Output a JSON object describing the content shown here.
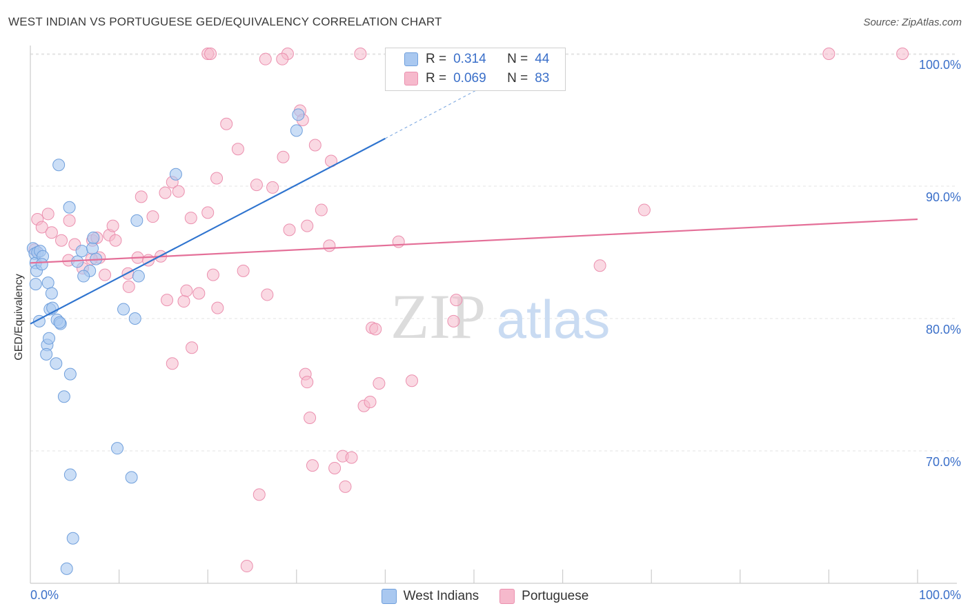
{
  "header": {
    "title": "WEST INDIAN VS PORTUGUESE GED/EQUIVALENCY CORRELATION CHART",
    "source": "Source: ZipAtlas.com"
  },
  "watermark": {
    "zip": "ZIP",
    "atlas": "atlas"
  },
  "colors": {
    "blue_fill": "#a9c8f0",
    "blue_stroke": "#6f9fdc",
    "blue_line": "#2f74cf",
    "pink_fill": "#f6b9cc",
    "pink_stroke": "#eb8fae",
    "pink_line": "#e46f98",
    "axis_text": "#3a6fc9",
    "grid": "#e3e3e3"
  },
  "legend_top": {
    "rows": [
      {
        "r_label": "R =",
        "r_value": "0.314",
        "n_label": "N =",
        "n_value": "44"
      },
      {
        "r_label": "R =",
        "r_value": "0.069",
        "n_label": "N =",
        "n_value": "83"
      }
    ]
  },
  "legend_bottom": [
    {
      "label": "West Indians"
    },
    {
      "label": "Portuguese"
    }
  ],
  "chart_data": {
    "type": "scatter",
    "title": "WEST INDIAN VS PORTUGUESE GED/EQUIVALENCY CORRELATION CHART",
    "xlabel": "",
    "ylabel": "GED/Equivalency",
    "xlim": [
      0,
      105
    ],
    "ylim": [
      60,
      101.5
    ],
    "x_tick_labels": [
      "0.0%",
      "100.0%"
    ],
    "y_ticks": [
      70,
      80,
      90,
      100
    ],
    "y_tick_labels": [
      "70.0%",
      "80.0%",
      "90.0%",
      "100.0%"
    ],
    "grid": true,
    "series": [
      {
        "name": "West Indians",
        "R": 0.314,
        "N": 44,
        "trend": {
          "x0": 0,
          "y0": 79.6,
          "x1": 40,
          "y1": 93.6,
          "dash_to_x": 58,
          "dash_to_y": 100
        },
        "points": [
          [
            0.3,
            85.3
          ],
          [
            0.5,
            84.9
          ],
          [
            0.6,
            84.2
          ],
          [
            0.8,
            85.0
          ],
          [
            0.7,
            83.6
          ],
          [
            0.6,
            82.6
          ],
          [
            1.1,
            85.1
          ],
          [
            1.4,
            84.7
          ],
          [
            1.3,
            84.1
          ],
          [
            2.0,
            82.7
          ],
          [
            2.4,
            81.9
          ],
          [
            1.0,
            79.8
          ],
          [
            2.2,
            80.7
          ],
          [
            2.5,
            80.8
          ],
          [
            3.0,
            79.9
          ],
          [
            3.4,
            79.6
          ],
          [
            1.9,
            78.0
          ],
          [
            2.1,
            78.5
          ],
          [
            1.8,
            77.3
          ],
          [
            2.9,
            76.6
          ],
          [
            4.5,
            75.8
          ],
          [
            3.8,
            74.1
          ],
          [
            3.2,
            91.6
          ],
          [
            4.4,
            88.4
          ],
          [
            5.3,
            84.3
          ],
          [
            5.8,
            85.1
          ],
          [
            7.0,
            85.3
          ],
          [
            6.7,
            83.6
          ],
          [
            7.4,
            84.5
          ],
          [
            6.0,
            83.2
          ],
          [
            7.1,
            86.1
          ],
          [
            10.5,
            80.7
          ],
          [
            12.0,
            87.4
          ],
          [
            11.8,
            80.0
          ],
          [
            12.2,
            83.2
          ],
          [
            16.4,
            90.9
          ],
          [
            9.8,
            70.2
          ],
          [
            11.4,
            68.0
          ],
          [
            4.5,
            68.2
          ],
          [
            4.8,
            63.4
          ],
          [
            4.1,
            61.1
          ],
          [
            30.0,
            94.2
          ],
          [
            30.2,
            95.4
          ],
          [
            3.3,
            79.7
          ]
        ]
      },
      {
        "name": "Portuguese",
        "R": 0.069,
        "N": 83,
        "trend": {
          "x0": 0,
          "y0": 84.2,
          "x1": 100,
          "y1": 87.5
        },
        "points": [
          [
            0.5,
            85.2
          ],
          [
            0.8,
            87.5
          ],
          [
            1.3,
            86.9
          ],
          [
            2.0,
            87.9
          ],
          [
            2.4,
            86.5
          ],
          [
            3.5,
            85.9
          ],
          [
            4.4,
            87.4
          ],
          [
            4.3,
            84.4
          ],
          [
            5.0,
            85.6
          ],
          [
            5.9,
            83.8
          ],
          [
            7.0,
            85.9
          ],
          [
            7.8,
            84.6
          ],
          [
            6.9,
            84.5
          ],
          [
            7.5,
            86.1
          ],
          [
            8.4,
            83.3
          ],
          [
            8.9,
            86.3
          ],
          [
            9.3,
            87.0
          ],
          [
            9.6,
            85.9
          ],
          [
            11.1,
            82.4
          ],
          [
            11.0,
            83.4
          ],
          [
            12.1,
            84.6
          ],
          [
            12.5,
            89.2
          ],
          [
            13.3,
            84.4
          ],
          [
            13.8,
            87.7
          ],
          [
            14.7,
            84.7
          ],
          [
            15.2,
            89.5
          ],
          [
            15.4,
            81.4
          ],
          [
            16.0,
            90.3
          ],
          [
            16.7,
            89.6
          ],
          [
            17.3,
            81.3
          ],
          [
            17.6,
            82.1
          ],
          [
            16.0,
            76.6
          ],
          [
            18.1,
            87.6
          ],
          [
            18.2,
            77.8
          ],
          [
            19.0,
            81.9
          ],
          [
            20.0,
            88.0
          ],
          [
            20.6,
            83.3
          ],
          [
            21.1,
            80.8
          ],
          [
            21.0,
            90.6
          ],
          [
            22.1,
            94.7
          ],
          [
            23.4,
            92.8
          ],
          [
            24.0,
            83.6
          ],
          [
            25.5,
            90.1
          ],
          [
            26.7,
            81.8
          ],
          [
            27.3,
            89.9
          ],
          [
            28.5,
            92.2
          ],
          [
            29.2,
            86.7
          ],
          [
            30.4,
            95.7
          ],
          [
            30.7,
            95.0
          ],
          [
            31.2,
            87.0
          ],
          [
            32.1,
            93.1
          ],
          [
            20.0,
            100.0
          ],
          [
            20.3,
            100.0
          ],
          [
            26.5,
            99.6
          ],
          [
            29.0,
            100.0
          ],
          [
            37.2,
            100.0
          ],
          [
            31.0,
            75.8
          ],
          [
            31.2,
            75.2
          ],
          [
            31.8,
            68.9
          ],
          [
            31.5,
            72.5
          ],
          [
            32.8,
            88.2
          ],
          [
            33.7,
            85.5
          ],
          [
            33.9,
            91.9
          ],
          [
            35.2,
            69.6
          ],
          [
            34.3,
            68.7
          ],
          [
            36.2,
            69.5
          ],
          [
            35.5,
            67.3
          ],
          [
            37.6,
            73.4
          ],
          [
            38.3,
            73.7
          ],
          [
            38.5,
            79.3
          ],
          [
            38.9,
            79.2
          ],
          [
            39.3,
            75.1
          ],
          [
            41.5,
            85.8
          ],
          [
            43.0,
            75.3
          ],
          [
            48.0,
            81.4
          ],
          [
            47.7,
            79.8
          ],
          [
            64.2,
            84.0
          ],
          [
            69.2,
            88.2
          ],
          [
            90.0,
            100.0
          ],
          [
            98.3,
            100.0
          ],
          [
            25.8,
            66.7
          ],
          [
            24.4,
            61.3
          ],
          [
            28.4,
            99.6
          ]
        ]
      }
    ]
  }
}
